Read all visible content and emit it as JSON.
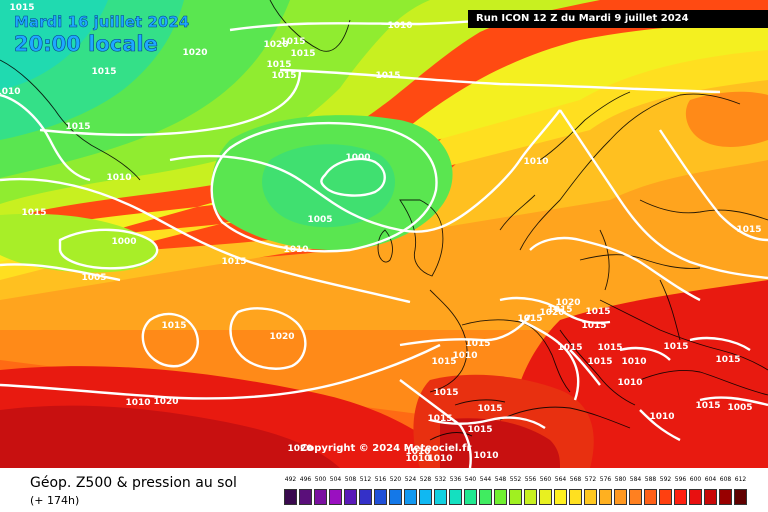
{
  "header": {
    "date": "Mardi 16 juillet 2024",
    "local_time": "20:00 locale",
    "run_info": "Run ICON 12 Z du Mardi 9 juillet 2024"
  },
  "copyright": "Copyright © 2024 Meteociel.fr",
  "footer": {
    "product": "Géop. Z500 & pression au sol",
    "lead": "(+ 174h)"
  },
  "isobar_labels": [
    "1015",
    "1010",
    "1020",
    "1020",
    "1015",
    "1015",
    "1015",
    "1015",
    "1015",
    "1015",
    "1010",
    "1010",
    "1000",
    "1005",
    "1010",
    "1015",
    "1015",
    "1010",
    "1000",
    "1005",
    "1015",
    "1020",
    "1015",
    "1010",
    "1020",
    "1020",
    "1015",
    "1015",
    "1015",
    "1015",
    "1010",
    "1015",
    "1015",
    "1015",
    "1015",
    "1015",
    "1015",
    "1010",
    "1015",
    "1010",
    "1010",
    "1015",
    "1015",
    "1015",
    "1010",
    "1015",
    "1005",
    "1020",
    "1015",
    "1015",
    "1010",
    "1020",
    "1010",
    "1010"
  ],
  "colors": {
    "isobar": "#ffffff",
    "coast": "#000000",
    "title_text": "#1ea9ff"
  },
  "scale": {
    "labels": [
      "492",
      "496",
      "500",
      "504",
      "508",
      "512",
      "516",
      "520",
      "524",
      "528",
      "532",
      "536",
      "540",
      "544",
      "548",
      "552",
      "556",
      "560",
      "564",
      "568",
      "572",
      "576",
      "580",
      "584",
      "588",
      "592",
      "596",
      "600",
      "604",
      "608",
      "612"
    ],
    "colors": [
      "#3a0a4e",
      "#5a0f7a",
      "#7a10a0",
      "#9a10c0",
      "#5a1ab8",
      "#3430c8",
      "#2050d8",
      "#1478e8",
      "#1298f0",
      "#10b8f2",
      "#12d0e0",
      "#14e0c0",
      "#20e890",
      "#40ec60",
      "#70f030",
      "#a0f020",
      "#c8f020",
      "#e8f020",
      "#fff020",
      "#ffe020",
      "#ffc820",
      "#ffb020",
      "#ff9820",
      "#ff8020",
      "#ff6018",
      "#ff4010",
      "#ff2010",
      "#e81010",
      "#c80808",
      "#980000",
      "#600000"
    ]
  }
}
